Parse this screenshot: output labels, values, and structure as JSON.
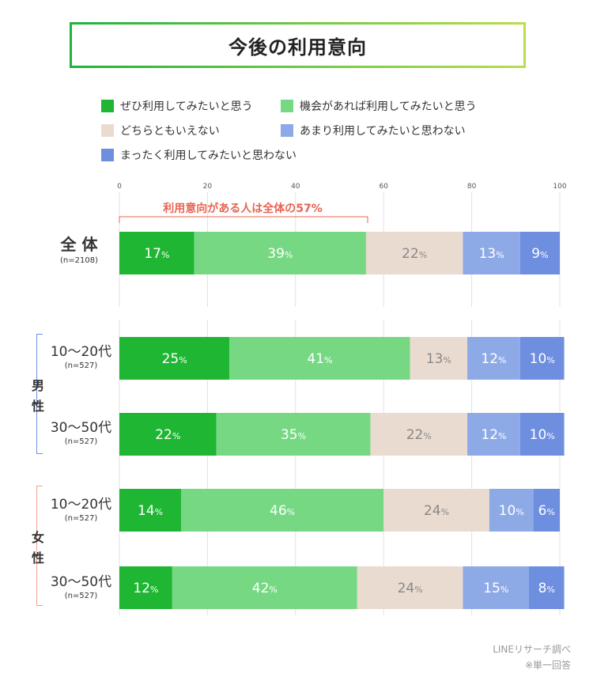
{
  "title": "今後の利用意向",
  "legend": [
    {
      "label": "ぜひ利用してみたいと思う",
      "color": "#1fb633"
    },
    {
      "label": "機会があれば利用してみたいと思う",
      "color": "#77d884"
    },
    {
      "label": "どちらともいえない",
      "color": "#eadbd0"
    },
    {
      "label": "あまり利用してみたいと思わない",
      "color": "#8eaae6"
    },
    {
      "label": "まったく利用してみたいと思わない",
      "color": "#6e8ee0"
    }
  ],
  "annotation": "利用意向がある人は全体の57%",
  "sex_labels": {
    "male": "男性",
    "female": "女性"
  },
  "percent_suffix": "%",
  "source": "LINEリサーチ調べ",
  "note": "※単一回答",
  "rows": [
    {
      "label": "全 体",
      "sub": "(n=2108)"
    },
    {
      "label": "10〜20代",
      "sub": "(n=527)"
    },
    {
      "label": "30〜50代",
      "sub": "(n=527)"
    },
    {
      "label": "10〜20代",
      "sub": "(n=527)"
    },
    {
      "label": "30〜50代",
      "sub": "(n=527)"
    }
  ],
  "chart_data": {
    "type": "bar",
    "orientation": "horizontal",
    "stacked": true,
    "xlim": [
      0,
      100
    ],
    "x_ticks": [
      "0",
      "20",
      "40",
      "60",
      "80",
      "100"
    ],
    "categories": [
      "全体",
      "男性 10〜20代",
      "男性 30〜50代",
      "女性 10〜20代",
      "女性 30〜50代"
    ],
    "series": [
      {
        "name": "ぜひ利用してみたいと思う",
        "values": [
          17,
          25,
          22,
          14,
          12
        ]
      },
      {
        "name": "機会があれば利用してみたいと思う",
        "values": [
          39,
          41,
          35,
          46,
          42
        ]
      },
      {
        "name": "どちらともいえない",
        "values": [
          22,
          13,
          22,
          24,
          24
        ]
      },
      {
        "name": "あまり利用してみたいと思わない",
        "values": [
          13,
          12,
          12,
          10,
          15
        ]
      },
      {
        "name": "まったく利用してみたいと思わない",
        "values": [
          9,
          10,
          10,
          6,
          8
        ]
      }
    ],
    "legend_position": "top",
    "grid": true
  }
}
